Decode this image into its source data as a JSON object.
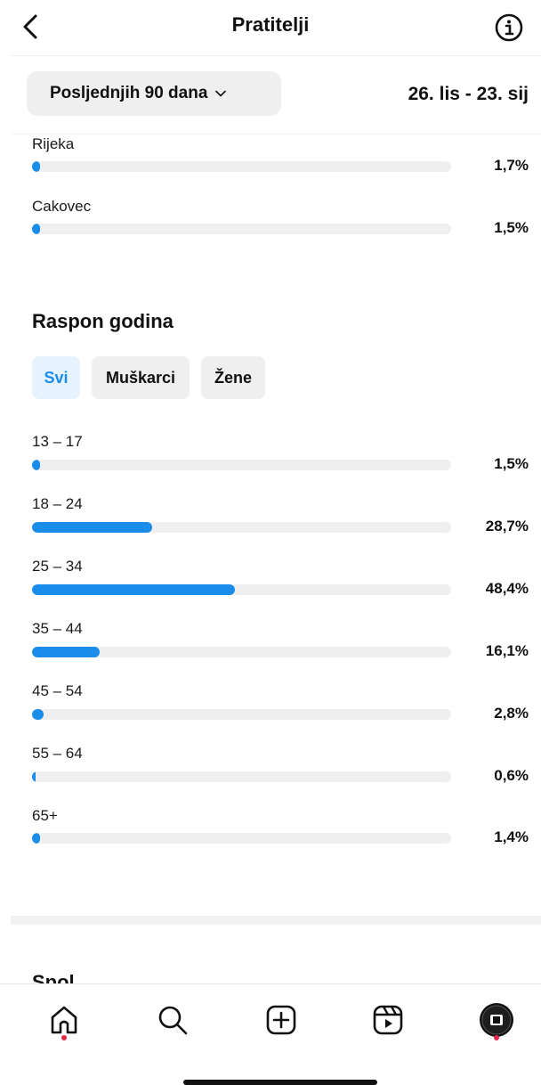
{
  "header": {
    "title": "Pratitelji",
    "back_icon": "chevron-left-icon",
    "info_icon": "info-circle-icon"
  },
  "filter": {
    "period_label": "Posljednjih 90 dana",
    "date_range": "26. lis - 23. sij"
  },
  "cities": [
    {
      "label": "Rijeka",
      "percent": "1,7%",
      "value": 1.7
    },
    {
      "label": "Cakovec",
      "percent": "1,5%",
      "value": 1.5
    }
  ],
  "age_section": {
    "title": "Raspon godina",
    "chips": [
      {
        "label": "Svi",
        "selected": true
      },
      {
        "label": "Muškarci",
        "selected": false
      },
      {
        "label": "Žene",
        "selected": false
      }
    ],
    "rows": [
      {
        "label": "13 – 17",
        "percent": "1,5%",
        "value": 1.5
      },
      {
        "label": "18 – 24",
        "percent": "28,7%",
        "value": 28.7
      },
      {
        "label": "25 – 34",
        "percent": "48,4%",
        "value": 48.4
      },
      {
        "label": "35 – 44",
        "percent": "16,1%",
        "value": 16.1
      },
      {
        "label": "45 – 54",
        "percent": "2,8%",
        "value": 2.8
      },
      {
        "label": "55 – 64",
        "percent": "0,6%",
        "value": 0.6
      },
      {
        "label": "65+",
        "percent": "1,4%",
        "value": 1.4
      }
    ]
  },
  "next_section": {
    "title": "Spol"
  },
  "colors": {
    "accent": "#1a8cea",
    "track": "#efefef",
    "notification_dot": "#e8244a"
  },
  "tabbar": {
    "items": [
      "home-icon",
      "search-icon",
      "create-icon",
      "reels-icon",
      "profile-icon"
    ]
  }
}
